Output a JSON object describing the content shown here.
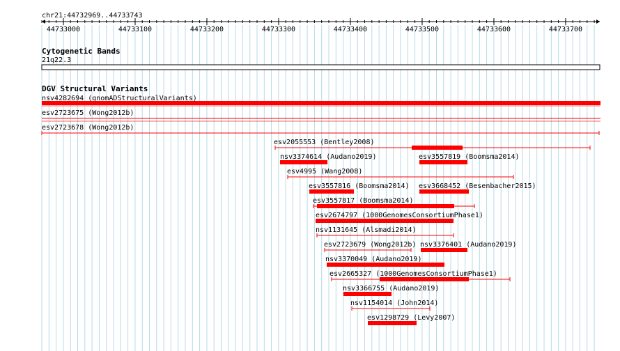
{
  "location": "chr21:44732969..44733743",
  "ruler": {
    "ticks": [
      "44733000",
      "44733100",
      "44733200",
      "44733300",
      "44733400",
      "44733500",
      "44733600",
      "44733700"
    ]
  },
  "tracks": {
    "cytoband": {
      "title": "Cytogenetic Bands",
      "band": "21q22.3"
    },
    "dgv": {
      "title": "DGV Structural Variants"
    }
  },
  "colors": {
    "variant": "#ff0000",
    "grid": "#b5dae8",
    "text": "#000000"
  },
  "features": [
    {
      "label": "nsv4282694 (gnomADStructuralVariants)",
      "style": "thick"
    },
    {
      "label": "esv2723675 (Wong2012b)",
      "style": "thin"
    },
    {
      "label": "esv2723678 (Wong2012b)",
      "style": "thin-ticks"
    },
    {
      "label": "esv2055553 (Bentley2008)",
      "style": "combo"
    },
    {
      "label": "nsv3374614 (Audano2019)",
      "style": "thick"
    },
    {
      "label": "esv3557819 (Boomsma2014)",
      "style": "thick"
    },
    {
      "label": "esv4995 (Wang2008)",
      "style": "thin-ticks"
    },
    {
      "label": "esv3557816 (Boomsma2014)",
      "style": "thick"
    },
    {
      "label": "esv3668452 (Besenbacher2015)",
      "style": "thick"
    },
    {
      "label": "esv3557817 (Boomsma2014)",
      "style": "combo"
    },
    {
      "label": "esv2674797 (1000GenomesConsortiumPhase1)",
      "style": "thick"
    },
    {
      "label": "nsv1131645 (Alsmadi2014)",
      "style": "thin-ticks"
    },
    {
      "label": "esv2723679 (Wong2012b)",
      "style": "thin-ticks"
    },
    {
      "label": "nsv3376401 (Audano2019)",
      "style": "thick"
    },
    {
      "label": "nsv3370049 (Audano2019)",
      "style": "thick"
    },
    {
      "label": "esv2665327 (1000GenomesConsortiumPhase1)",
      "style": "combo"
    },
    {
      "label": "nsv3366755 (Audano2019)",
      "style": "thick"
    },
    {
      "label": "nsv1154014 (John2014)",
      "style": "thin-ticks"
    },
    {
      "label": "esv1298729 (Levy2007)",
      "style": "thick"
    }
  ]
}
